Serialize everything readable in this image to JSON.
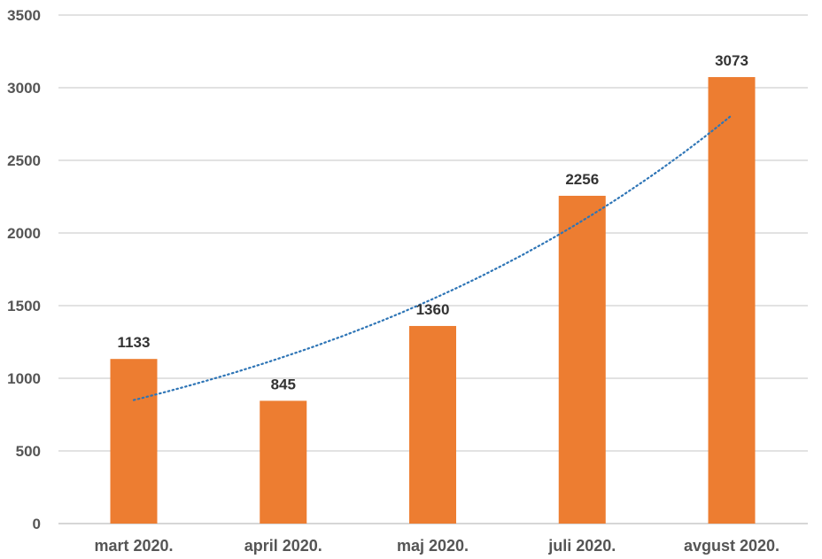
{
  "chart_data": {
    "type": "bar",
    "categories": [
      "mart 2020.",
      "april 2020.",
      "maj 2020.",
      "juli 2020.",
      "avgust 2020."
    ],
    "values": [
      1133,
      845,
      1360,
      2256,
      3073
    ],
    "data_labels": [
      "1133",
      "845",
      "1360",
      "2256",
      "3073"
    ],
    "ylim": [
      0,
      3500
    ],
    "yticks": [
      0,
      500,
      1000,
      1500,
      2000,
      2500,
      3000,
      3500
    ],
    "ytick_labels": [
      "0",
      "500",
      "1000",
      "1500",
      "2000",
      "2500",
      "3000",
      "3500"
    ],
    "grid": true,
    "legend": "none",
    "bar_color": "#ed7d31",
    "trendline": {
      "type": "exponential",
      "style": "dotted",
      "color": "#2e75b6",
      "start_value": 850,
      "end_value": 2810
    }
  }
}
